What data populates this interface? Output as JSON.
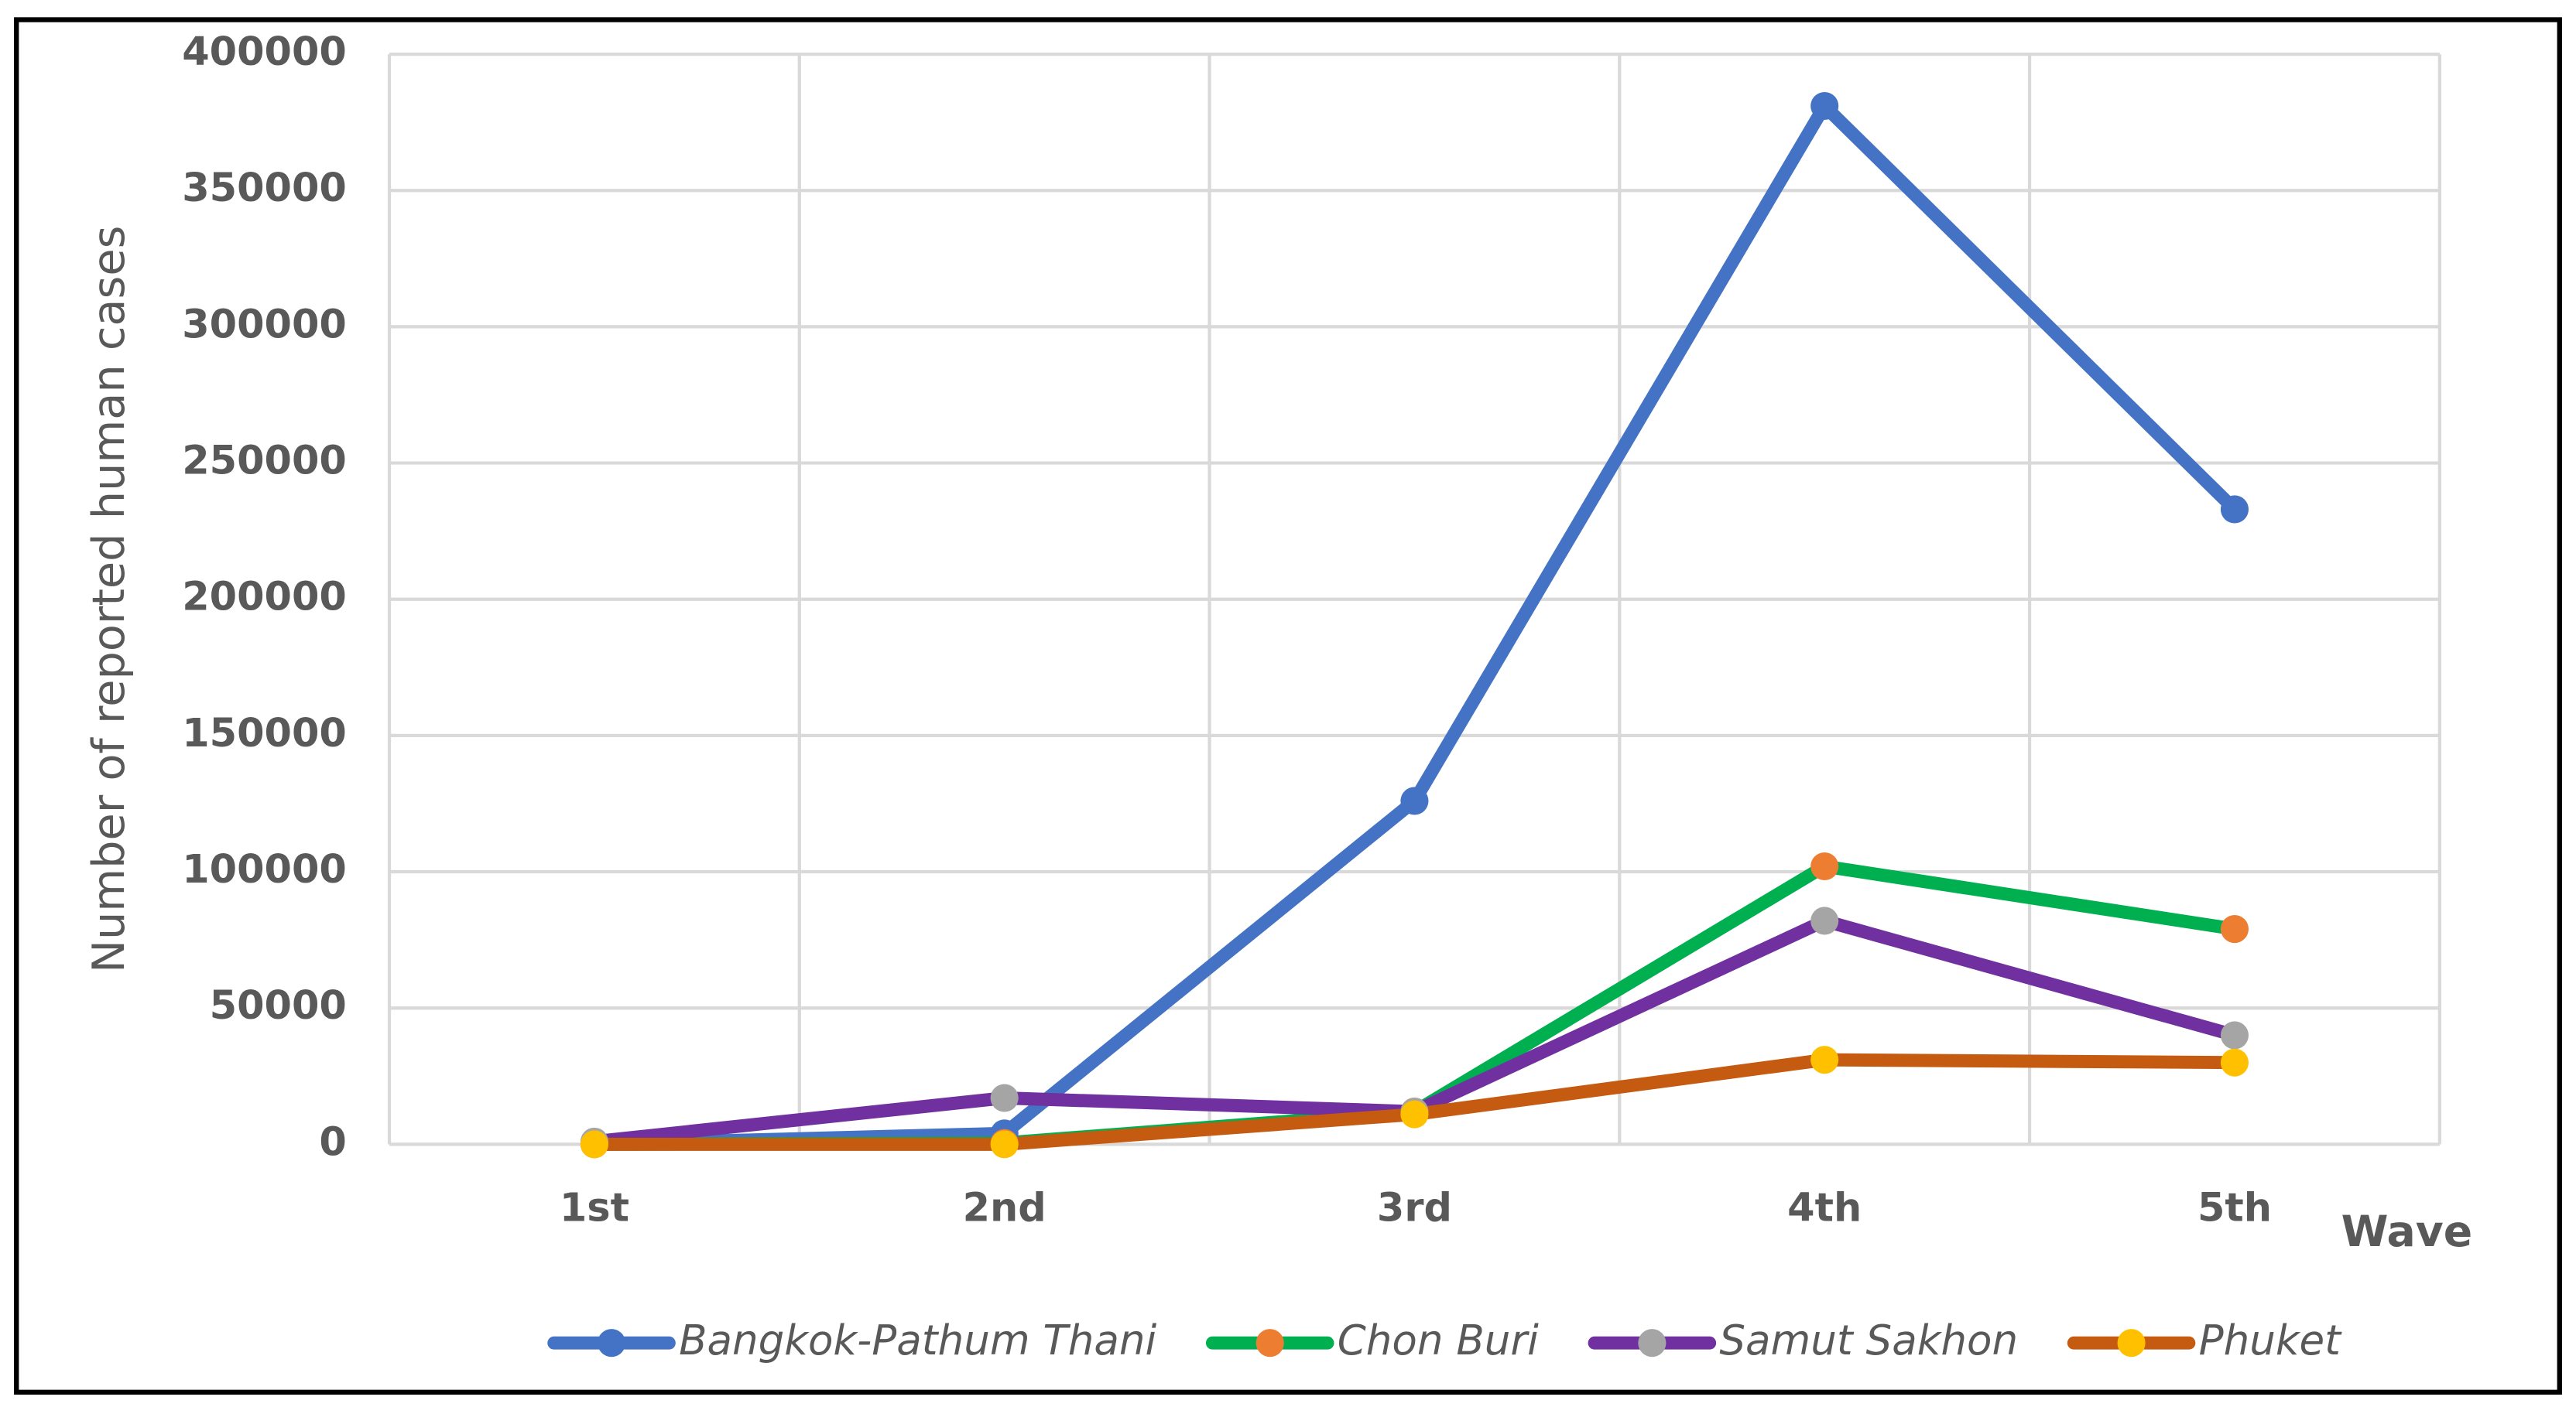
{
  "chart_data": {
    "type": "line",
    "y_label": "Number of reported human cases",
    "x_label": "Wave",
    "categories": [
      "1st",
      "2nd",
      "3rd",
      "4th",
      "5th"
    ],
    "series": [
      {
        "name": "Bangkok-Pathum Thani",
        "color": "#4472c4",
        "marker_color": "#4472c4",
        "values": [
          100,
          4000,
          126000,
          381000,
          233000
        ]
      },
      {
        "name": "Chon Buri",
        "color": "#00b050",
        "marker_color": "#ed7d31",
        "values": [
          0,
          500,
          12000,
          102000,
          79000
        ]
      },
      {
        "name": "Samut Sakhon",
        "color": "#7030a0",
        "marker_color": "#a5a5a5",
        "values": [
          1000,
          17000,
          12000,
          82000,
          40000
        ]
      },
      {
        "name": "Phuket",
        "color": "#c55a11",
        "marker_color": "#ffc000",
        "values": [
          0,
          0,
          11000,
          31000,
          30000
        ]
      }
    ],
    "ylim": [
      0,
      400000
    ],
    "yticks": [
      0,
      50000,
      100000,
      150000,
      200000,
      250000,
      300000,
      350000,
      400000
    ],
    "grid": true,
    "legend": "bottom"
  }
}
